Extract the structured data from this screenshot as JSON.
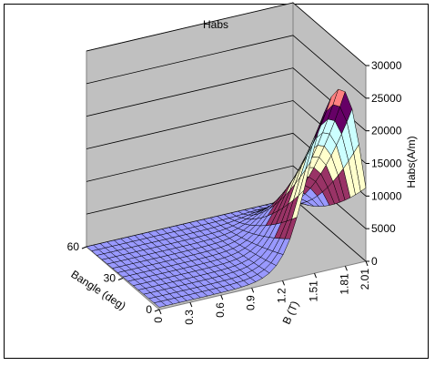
{
  "chart_data": {
    "type": "surface3d",
    "title": "Habs",
    "xlabel": "B (T)",
    "ylabel": "Bangle (deg)",
    "zlabel": "Habs(A/m)",
    "x_ticks": [
      "0",
      "0.3",
      "0.6",
      "0.9",
      "1.2",
      "1.51",
      "1.81",
      "2.01"
    ],
    "y_ticks": [
      "0",
      "30",
      "60"
    ],
    "z_ticks": [
      "0",
      "5000",
      "10000",
      "15000",
      "20000",
      "25000",
      "30000"
    ],
    "zlim": [
      0,
      30000
    ],
    "bands": [
      {
        "range": "0-5000",
        "color": "#9999ff"
      },
      {
        "range": "5000-10000",
        "color": "#993366"
      },
      {
        "range": "10000-15000",
        "color": "#ffffcc"
      },
      {
        "range": "15000-20000",
        "color": "#ccffff"
      },
      {
        "range": "20000-25000",
        "color": "#660066"
      },
      {
        "range": "25000-30000",
        "color": "#ff8080"
      }
    ],
    "walls_color": "#c0c0c0",
    "grid": true,
    "legend": "none"
  }
}
